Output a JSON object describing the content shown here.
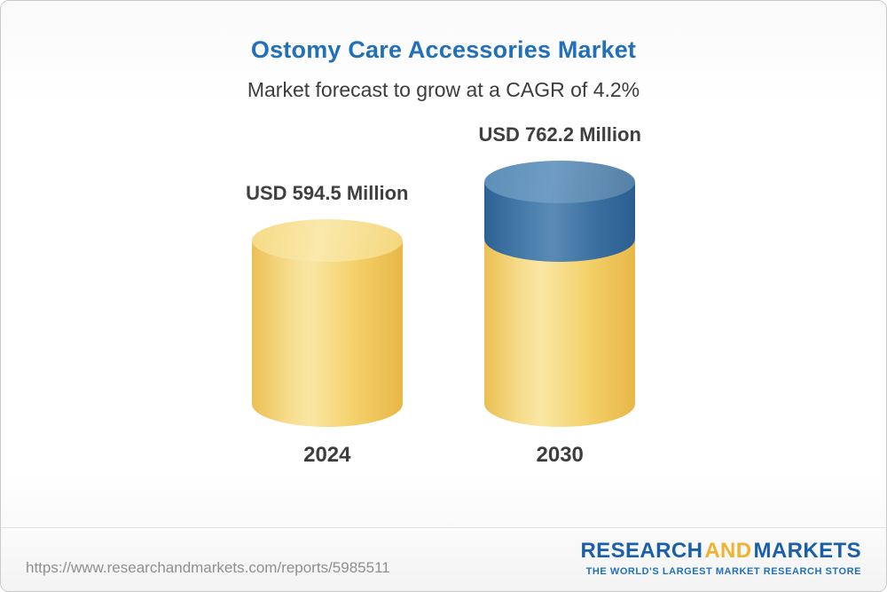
{
  "page": {
    "title": "Ostomy Care Accessories Market",
    "subtitle": "Market forecast to grow at a CAGR of 4.2%"
  },
  "chart_data": {
    "type": "bar",
    "bar_style": "3d-cylinder",
    "title": "Ostomy Care Accessories Market",
    "subtitle": "Market forecast to grow at a CAGR of 4.2%",
    "categories": [
      "2024",
      "2030"
    ],
    "values": [
      594.5,
      762.2
    ],
    "value_labels": [
      "USD 594.5 Million",
      "USD 762.2 Million"
    ],
    "unit": "USD Million",
    "cagr": "4.2%",
    "ylim": [
      0,
      762.2
    ],
    "legend": "none",
    "grid": "off",
    "colors": {
      "base_cylinder": "#F3CF68",
      "growth_cap": "#3A6E9F",
      "title_text": "#2170B8",
      "label_text": "#3F3F3F"
    },
    "notes": "2030 cylinder base portion equals 2024 value; blue top cap represents growth from 594.5 to 762.2"
  },
  "footer": {
    "url": "https://www.researchandmarkets.com/reports/5985511",
    "logo": {
      "research": "RESEARCH",
      "and": "AND",
      "markets": "MARKETS",
      "tagline": "THE WORLD'S LARGEST MARKET RESEARCH STORE"
    }
  }
}
